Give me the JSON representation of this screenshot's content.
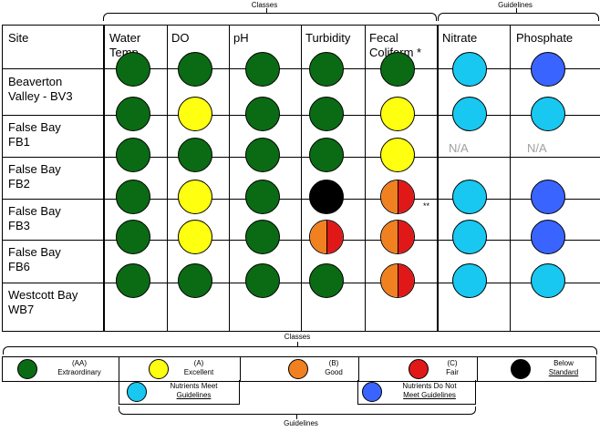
{
  "top": {
    "classes_label": "Classes",
    "guidelines_label": "Guidelines"
  },
  "headers": [
    "Site",
    "Water Temp",
    "DO",
    "pH",
    "Turbidity",
    "Fecal Coliform",
    "Nitrate",
    "Phosphate"
  ],
  "fecal_star": "*",
  "rows": [
    {
      "site": "Beaverton Valley - BV3",
      "cells": [
        "green",
        "green",
        "green",
        "green",
        "green",
        "cyan",
        "blue"
      ]
    },
    {
      "site": "False Bay FB1",
      "cells": [
        "green",
        "yellow",
        "green",
        "green",
        "yellow",
        "cyan",
        "cyan"
      ]
    },
    {
      "site": "False Bay FB2",
      "cells": [
        "green",
        "green",
        "green",
        "green",
        "yellow",
        "na",
        "na"
      ]
    },
    {
      "site": "False Bay FB3",
      "cells": [
        "green",
        "yellow",
        "green",
        "black",
        "orange-red",
        "cyan",
        "blue"
      ]
    },
    {
      "site": "False Bay FB6",
      "cells": [
        "green",
        "yellow",
        "green",
        "orange-red",
        "orange-red",
        "cyan",
        "blue"
      ]
    },
    {
      "site": "Westcott Bay WB7",
      "cells": [
        "green",
        "green",
        "green",
        "green",
        "orange-red",
        "cyan",
        "cyan"
      ]
    }
  ],
  "na_text": "N/A",
  "double_star": "**",
  "colors": {
    "green": "#0a6b14",
    "yellow": "#ffff10",
    "orange": "#f08020",
    "red": "#e01818",
    "black": "#000000",
    "cyan": "#18c8f0",
    "blue": "#3a64ff"
  },
  "legend": {
    "classes_label": "Classes",
    "guidelines_label": "Guidelines",
    "aa": {
      "code": "(AA)",
      "name": "Extraordinary"
    },
    "a": {
      "code": "(A)",
      "name": "Excellent"
    },
    "b": {
      "code": "(B)",
      "name": "Good"
    },
    "c": {
      "code": "(C)",
      "name": "Fair"
    },
    "below": {
      "line1": "Below",
      "line2": "Standard"
    },
    "meet": {
      "line1": "Nutrients Meet",
      "line2": "Guidelines"
    },
    "notmeet": {
      "line1": "Nutrients Do Not",
      "line2": "Meet Guidelines"
    }
  }
}
